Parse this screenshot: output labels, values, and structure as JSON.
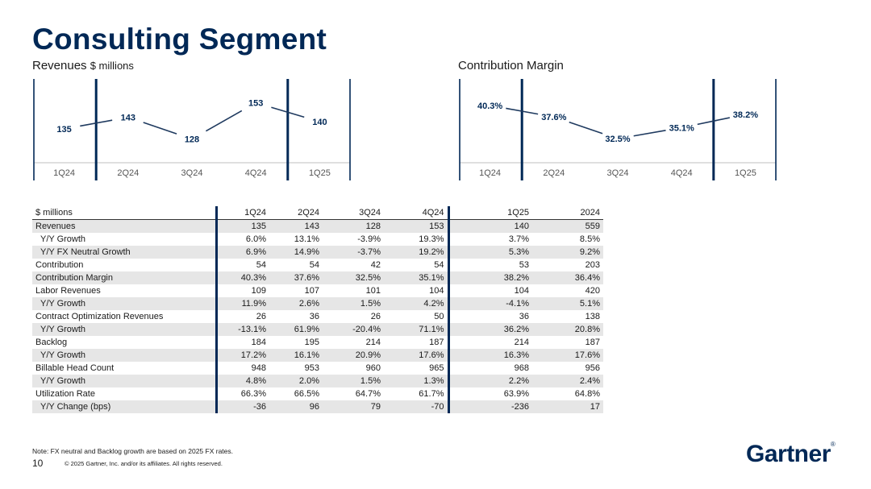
{
  "page": {
    "title": "Consulting Segment",
    "note": "Note: FX neutral and Backlog growth are based on 2025 FX rates.",
    "page_number": "10",
    "copyright": "© 2025 Gartner, Inc. and/or its affiliates. All rights reserved.",
    "logo": "Gartner",
    "logo_mark": "®"
  },
  "chart_data": [
    {
      "type": "line",
      "title": "Revenues",
      "title_unit": "$ millions",
      "categories": [
        "1Q24",
        "2Q24",
        "3Q24",
        "4Q24",
        "1Q25"
      ],
      "values": [
        135,
        143,
        128,
        153,
        140
      ],
      "labels": [
        "135",
        "143",
        "128",
        "153",
        "140"
      ],
      "ylim": [
        115,
        165
      ]
    },
    {
      "type": "line",
      "title": "Contribution Margin",
      "title_unit": "",
      "categories": [
        "1Q24",
        "2Q24",
        "3Q24",
        "4Q24",
        "1Q25"
      ],
      "values": [
        40.3,
        37.6,
        32.5,
        35.1,
        38.2
      ],
      "labels": [
        "40.3%",
        "37.6%",
        "32.5%",
        "35.1%",
        "38.2%"
      ],
      "ylim": [
        28,
        45
      ]
    }
  ],
  "table": {
    "columns": [
      "$ millions",
      "1Q24",
      "2Q24",
      "3Q24",
      "4Q24",
      "1Q25",
      "2024"
    ],
    "rows": [
      {
        "label": "Revenues",
        "indent": false,
        "shade": true,
        "cells": [
          "135",
          "143",
          "128",
          "153",
          "140",
          "559"
        ]
      },
      {
        "label": "Y/Y Growth",
        "indent": true,
        "shade": false,
        "cells": [
          "6.0%",
          "13.1%",
          "-3.9%",
          "19.3%",
          "3.7%",
          "8.5%"
        ]
      },
      {
        "label": "Y/Y FX Neutral Growth",
        "indent": true,
        "shade": true,
        "cells": [
          "6.9%",
          "14.9%",
          "-3.7%",
          "19.2%",
          "5.3%",
          "9.2%"
        ]
      },
      {
        "label": "Contribution",
        "indent": false,
        "shade": false,
        "cells": [
          "54",
          "54",
          "42",
          "54",
          "53",
          "203"
        ]
      },
      {
        "label": "Contribution Margin",
        "indent": false,
        "shade": true,
        "cells": [
          "40.3%",
          "37.6%",
          "32.5%",
          "35.1%",
          "38.2%",
          "36.4%"
        ]
      },
      {
        "label": "Labor Revenues",
        "indent": false,
        "shade": false,
        "cells": [
          "109",
          "107",
          "101",
          "104",
          "104",
          "420"
        ]
      },
      {
        "label": "Y/Y Growth",
        "indent": true,
        "shade": true,
        "cells": [
          "11.9%",
          "2.6%",
          "1.5%",
          "4.2%",
          "-4.1%",
          "5.1%"
        ]
      },
      {
        "label": "Contract Optimization Revenues",
        "indent": false,
        "shade": false,
        "cells": [
          "26",
          "36",
          "26",
          "50",
          "36",
          "138"
        ]
      },
      {
        "label": "Y/Y Growth",
        "indent": true,
        "shade": true,
        "cells": [
          "-13.1%",
          "61.9%",
          "-20.4%",
          "71.1%",
          "36.2%",
          "20.8%"
        ]
      },
      {
        "label": "Backlog",
        "indent": false,
        "shade": false,
        "cells": [
          "184",
          "195",
          "214",
          "187",
          "214",
          "187"
        ]
      },
      {
        "label": "Y/Y Growth",
        "indent": true,
        "shade": true,
        "cells": [
          "17.2%",
          "16.1%",
          "20.9%",
          "17.6%",
          "16.3%",
          "17.6%"
        ]
      },
      {
        "label": "Billable Head Count",
        "indent": false,
        "shade": false,
        "cells": [
          "948",
          "953",
          "960",
          "965",
          "968",
          "956"
        ]
      },
      {
        "label": "Y/Y Growth",
        "indent": true,
        "shade": true,
        "cells": [
          "4.8%",
          "2.0%",
          "1.5%",
          "1.3%",
          "2.2%",
          "2.4%"
        ]
      },
      {
        "label": "Utilization Rate",
        "indent": false,
        "shade": false,
        "cells": [
          "66.3%",
          "66.5%",
          "64.7%",
          "61.7%",
          "63.9%",
          "64.8%"
        ]
      },
      {
        "label": "Y/Y Change (bps)",
        "indent": true,
        "shade": true,
        "cells": [
          "-36",
          "96",
          "79",
          "-70",
          "-236",
          "17"
        ]
      }
    ]
  },
  "colors": {
    "navy": "#002856",
    "line": "#1f3a5f",
    "frame": "#002856",
    "tick": "#555555",
    "baseline": "#bfbfbf"
  }
}
